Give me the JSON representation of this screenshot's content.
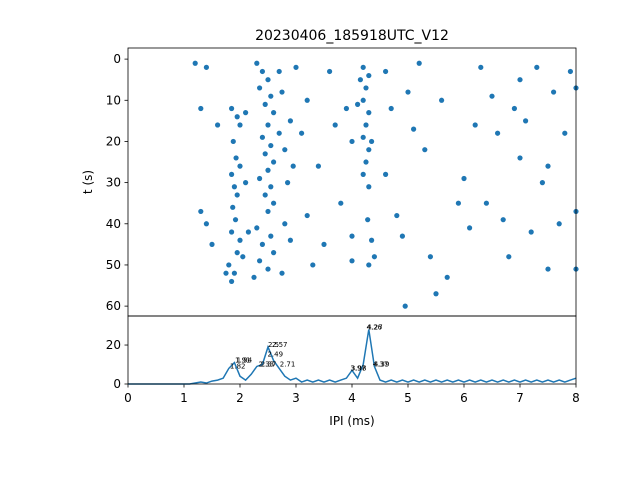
{
  "chart_data": [
    {
      "type": "scatter",
      "title": "20230406_185918UTC_V12",
      "y_label": "t (s)",
      "color": "#1f77b4",
      "x": [
        1.85,
        1.95,
        2.0,
        1.88,
        1.93,
        2.0,
        1.85,
        1.9,
        1.95,
        1.87,
        1.92,
        1.85,
        2.0,
        1.95,
        1.8,
        1.9,
        1.85,
        2.05,
        1.75,
        2.1,
        2.1,
        2.15,
        2.3,
        2.4,
        2.5,
        2.35,
        2.55,
        2.45,
        2.6,
        2.5,
        2.4,
        2.55,
        2.45,
        2.6,
        2.5,
        2.35,
        2.55,
        2.45,
        2.6,
        2.5,
        2.3,
        2.55,
        2.4,
        2.6,
        2.35,
        2.5,
        2.25,
        2.7,
        2.75,
        2.7,
        2.8,
        2.9,
        2.85,
        2.95,
        2.8,
        2.9,
        2.75,
        4.2,
        4.3,
        4.25,
        4.2,
        4.3,
        4.25,
        4.2,
        4.3,
        4.25,
        4.2,
        4.3,
        4.28,
        4.35,
        4.4,
        4.3,
        4.15,
        4.1,
        4.35,
        1.2,
        1.3,
        1.4,
        1.6,
        1.3,
        1.4,
        1.5,
        3.0,
        3.2,
        3.1,
        3.4,
        3.2,
        3.5,
        3.3,
        3.6,
        3.7,
        3.8,
        3.9,
        4.0,
        4.0,
        4.0,
        4.6,
        4.7,
        4.6,
        4.8,
        4.9,
        4.95,
        5.0,
        5.1,
        5.3,
        5.4,
        5.5,
        5.2,
        5.6,
        5.7,
        5.9,
        6.0,
        6.1,
        6.2,
        6.3,
        6.4,
        6.5,
        6.6,
        6.7,
        6.8,
        7.0,
        7.0,
        7.1,
        7.2,
        7.3,
        7.4,
        7.5,
        7.6,
        7.7,
        7.8,
        7.9,
        8.0,
        8.0,
        8.0,
        7.5,
        6.9
      ],
      "values": [
        12,
        14,
        16,
        20,
        24,
        26,
        28,
        31,
        33,
        36,
        39,
        42,
        44,
        47,
        50,
        52,
        54,
        48,
        52,
        13,
        30,
        42,
        1,
        3,
        5,
        7,
        9,
        11,
        13,
        16,
        19,
        21,
        23,
        25,
        27,
        29,
        31,
        33,
        35,
        37,
        41,
        43,
        45,
        47,
        49,
        51,
        53,
        3,
        8,
        18,
        22,
        15,
        30,
        26,
        40,
        44,
        52,
        2,
        4,
        7,
        10,
        13,
        16,
        19,
        22,
        25,
        28,
        31,
        39,
        44,
        48,
        50,
        5,
        11,
        20,
        1,
        12,
        2,
        16,
        37,
        40,
        45,
        2,
        10,
        18,
        26,
        38,
        45,
        50,
        3,
        16,
        35,
        12,
        20,
        43,
        49,
        3,
        12,
        28,
        38,
        43,
        60,
        8,
        17,
        22,
        48,
        57,
        1,
        10,
        53,
        35,
        29,
        41,
        16,
        2,
        35,
        9,
        18,
        39,
        48,
        5,
        24,
        15,
        42,
        2,
        30,
        26,
        8,
        40,
        18,
        3,
        7,
        51,
        37,
        51,
        12
      ],
      "xlim": [
        0,
        8
      ],
      "ylim": [
        62.4,
        -2.7
      ],
      "yticks": [
        0,
        10,
        20,
        30,
        40,
        50,
        60
      ]
    },
    {
      "type": "line",
      "x_label": "IPI (ms)",
      "color": "#1f77b4",
      "x": [
        0,
        0.1,
        0.2,
        0.3,
        0.4,
        0.5,
        0.6,
        0.7,
        0.8,
        0.9,
        1,
        1.1,
        1.2,
        1.3,
        1.4,
        1.5,
        1.6,
        1.7,
        1.8,
        1.9,
        2,
        2.1,
        2.2,
        2.3,
        2.4,
        2.5,
        2.6,
        2.7,
        2.8,
        2.9,
        3,
        3.1,
        3.2,
        3.3,
        3.4,
        3.5,
        3.6,
        3.7,
        3.8,
        3.9,
        4,
        4.1,
        4.2,
        4.3,
        4.4,
        4.5,
        4.6,
        4.7,
        4.8,
        4.9,
        5,
        5.1,
        5.2,
        5.3,
        5.4,
        5.5,
        5.6,
        5.7,
        5.8,
        5.9,
        6,
        6.1,
        6.2,
        6.3,
        6.4,
        6.5,
        6.6,
        6.7,
        6.8,
        6.9,
        7,
        7.1,
        7.2,
        7.3,
        7.4,
        7.5,
        7.6,
        7.7,
        7.8,
        7.9,
        8
      ],
      "values": [
        0,
        0,
        0,
        0,
        0,
        0,
        0,
        0,
        0,
        0,
        0,
        0,
        0.5,
        1,
        0.5,
        1.5,
        2,
        3,
        8,
        11,
        4,
        2,
        5,
        9,
        10,
        19,
        12,
        8,
        4,
        2,
        3,
        1,
        2,
        1,
        2,
        1,
        2,
        1,
        2,
        3,
        7,
        3,
        10,
        28,
        9,
        2,
        1,
        2,
        1,
        2,
        1,
        2,
        1,
        2,
        1,
        2,
        1,
        2,
        1,
        2,
        1,
        2,
        1,
        2,
        1,
        2,
        1,
        2,
        1,
        2,
        1,
        2,
        1,
        2,
        1,
        2,
        1,
        2,
        1,
        2,
        3
      ],
      "annotations": [
        {
          "x": 1.82,
          "y": 8
        },
        {
          "x": 1.91,
          "y": 11
        },
        {
          "x": 1.94,
          "y": 11
        },
        {
          "x": 2.33,
          "y": 9
        },
        {
          "x": 2.37,
          "y": 9
        },
        {
          "x": 2.49,
          "y": 14
        },
        {
          "x": 2.5,
          "y": 19
        },
        {
          "x": 2.57,
          "y": 19
        },
        {
          "x": 2.71,
          "y": 9
        },
        {
          "x": 3.97,
          "y": 7
        },
        {
          "x": 3.98,
          "y": 7
        },
        {
          "x": 4.26,
          "y": 28
        },
        {
          "x": 4.27,
          "y": 28
        },
        {
          "x": 4.37,
          "y": 9
        },
        {
          "x": 4.39,
          "y": 9
        }
      ],
      "xlim": [
        0,
        8
      ],
      "xticks": [
        0,
        1,
        2,
        3,
        4,
        5,
        6,
        7,
        8
      ],
      "ylim": [
        0,
        34.9
      ],
      "yticks": [
        0,
        20
      ]
    }
  ]
}
